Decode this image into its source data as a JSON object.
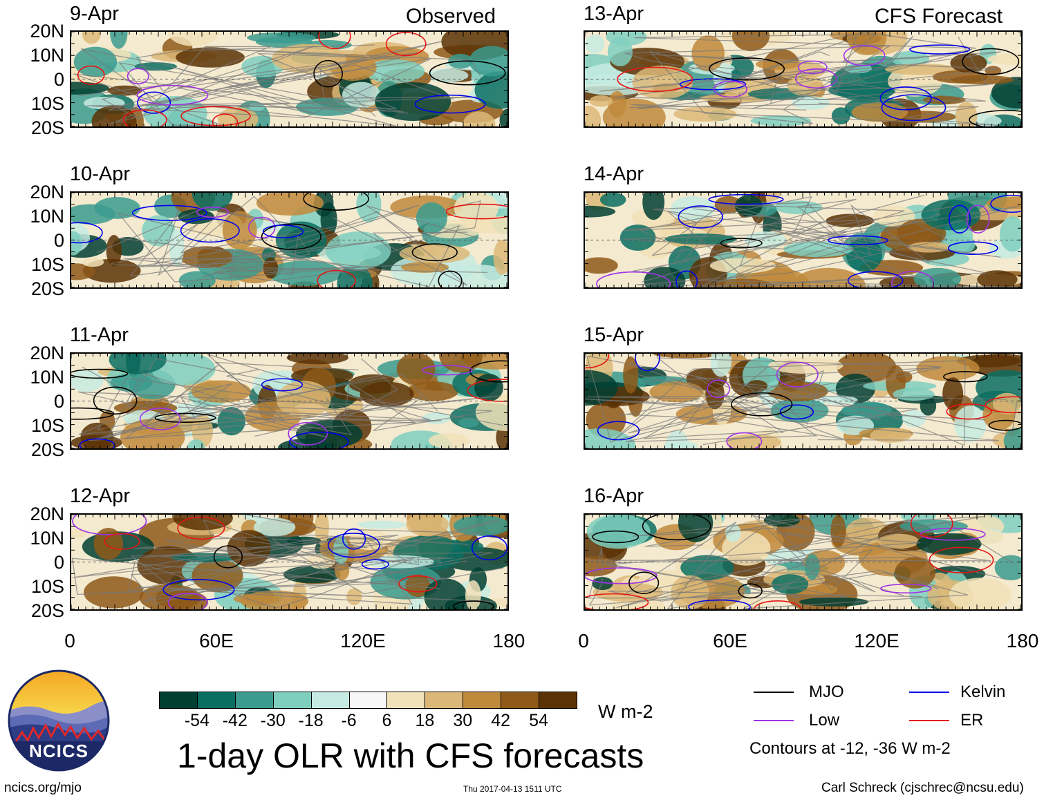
{
  "headers": {
    "observed": "Observed",
    "forecast": "CFS Forecast"
  },
  "chart_data": [
    {
      "type": "heatmap",
      "group": "Observed",
      "title": "9-Apr",
      "lat_labels": [
        "20N",
        "10N",
        "0",
        "10S",
        "20S"
      ],
      "lon_labels": [
        "0",
        "60E",
        "120E",
        "180"
      ],
      "xlim": [
        0,
        180
      ],
      "ylim": [
        -20,
        20
      ],
      "zero_line": "dashed",
      "contours": [
        "MJO",
        "Kelvin",
        "Low",
        "ER"
      ]
    },
    {
      "type": "heatmap",
      "group": "Observed",
      "title": "10-Apr",
      "lat_labels": [
        "20N",
        "10N",
        "0",
        "10S",
        "20S"
      ],
      "lon_labels": [
        "0",
        "60E",
        "120E",
        "180"
      ],
      "xlim": [
        0,
        180
      ],
      "ylim": [
        -20,
        20
      ],
      "zero_line": "dashed",
      "contours": [
        "MJO",
        "Kelvin",
        "Low",
        "ER"
      ]
    },
    {
      "type": "heatmap",
      "group": "Observed",
      "title": "11-Apr",
      "lat_labels": [
        "20N",
        "10N",
        "0",
        "10S",
        "20S"
      ],
      "lon_labels": [
        "0",
        "60E",
        "120E",
        "180"
      ],
      "xlim": [
        0,
        180
      ],
      "ylim": [
        -20,
        20
      ],
      "zero_line": "dashed",
      "contours": [
        "MJO",
        "Kelvin",
        "Low",
        "ER"
      ]
    },
    {
      "type": "heatmap",
      "group": "Observed",
      "title": "12-Apr",
      "lat_labels": [
        "20N",
        "10N",
        "0",
        "10S",
        "20S"
      ],
      "lon_labels": [
        "0",
        "60E",
        "120E",
        "180"
      ],
      "xlim": [
        0,
        180
      ],
      "ylim": [
        -20,
        20
      ],
      "zero_line": "dashed",
      "contours": [
        "MJO",
        "Kelvin",
        "Low",
        "ER"
      ]
    },
    {
      "type": "heatmap",
      "group": "CFS Forecast",
      "title": "13-Apr",
      "lat_labels": [
        "20N",
        "10N",
        "0",
        "10S",
        "20S"
      ],
      "lon_labels": [
        "0",
        "60E",
        "120E",
        "180"
      ],
      "xlim": [
        0,
        180
      ],
      "ylim": [
        -20,
        20
      ],
      "zero_line": "dashed",
      "contours": [
        "MJO",
        "Kelvin",
        "Low",
        "ER"
      ]
    },
    {
      "type": "heatmap",
      "group": "CFS Forecast",
      "title": "14-Apr",
      "lat_labels": [
        "20N",
        "10N",
        "0",
        "10S",
        "20S"
      ],
      "lon_labels": [
        "0",
        "60E",
        "120E",
        "180"
      ],
      "xlim": [
        0,
        180
      ],
      "ylim": [
        -20,
        20
      ],
      "zero_line": "dashed",
      "contours": [
        "MJO",
        "Kelvin",
        "Low",
        "ER"
      ]
    },
    {
      "type": "heatmap",
      "group": "CFS Forecast",
      "title": "15-Apr",
      "lat_labels": [
        "20N",
        "10N",
        "0",
        "10S",
        "20S"
      ],
      "lon_labels": [
        "0",
        "60E",
        "120E",
        "180"
      ],
      "xlim": [
        0,
        180
      ],
      "ylim": [
        -20,
        20
      ],
      "zero_line": "dashed",
      "contours": [
        "MJO",
        "Kelvin",
        "Low",
        "ER"
      ]
    },
    {
      "type": "heatmap",
      "group": "CFS Forecast",
      "title": "16-Apr",
      "lat_labels": [
        "20N",
        "10N",
        "0",
        "10S",
        "20S"
      ],
      "lon_labels": [
        "0",
        "60E",
        "120E",
        "180"
      ],
      "xlim": [
        0,
        180
      ],
      "ylim": [
        -20,
        20
      ],
      "zero_line": "dashed",
      "contours": [
        "MJO",
        "Kelvin",
        "Low",
        "ER"
      ]
    }
  ],
  "colorbar": {
    "unit": "W m-2",
    "labels": [
      "-54",
      "-42",
      "-30",
      "-18",
      "-6",
      "6",
      "18",
      "30",
      "42",
      "54"
    ],
    "colors": [
      "#013f33",
      "#0a6e61",
      "#3a9b8e",
      "#7fcfbf",
      "#c6ebe2",
      "#f7f7f7",
      "#f2e2b9",
      "#dcb878",
      "#bf8a3c",
      "#8e5919",
      "#5a3206"
    ]
  },
  "legend": {
    "items": [
      {
        "label": "MJO",
        "color": "#000000"
      },
      {
        "label": "Kelvin",
        "color": "#0000ee"
      },
      {
        "label": "Low",
        "color": "#a032e6"
      },
      {
        "label": "ER",
        "color": "#e61414"
      }
    ],
    "note": "Contours at -12, -36 W m-2"
  },
  "title": "1-day OLR with CFS forecasts",
  "logo_text": "NCICS",
  "footer": {
    "url": "ncics.org/mjo",
    "timestamp": "Thu 2017-04-13 1511 UTC",
    "author": "Carl Schreck (cjschrec@ncsu.edu)"
  }
}
